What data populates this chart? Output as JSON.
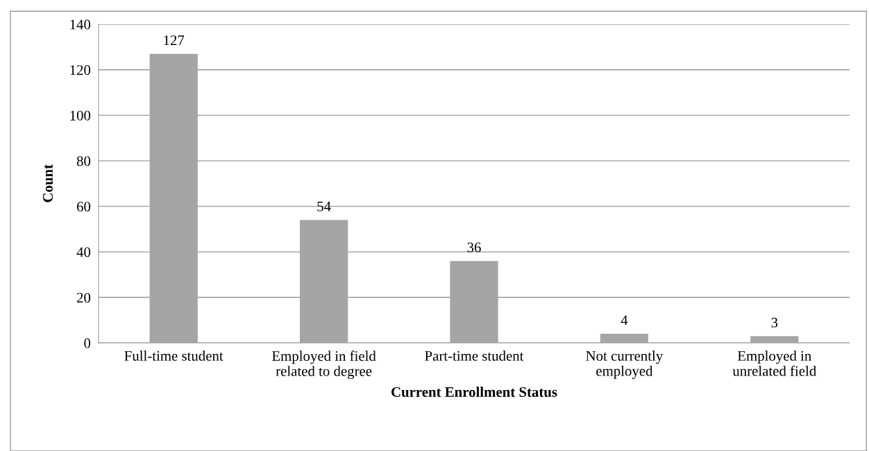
{
  "chart_data": {
    "type": "bar",
    "xlabel": "Current Enrollment Status",
    "ylabel": "Count",
    "categories": [
      "Full-time student",
      "Employed in field\nrelated to degree",
      "Part-time student",
      "Not currently\nemployed",
      "Employed in\nunrelated field"
    ],
    "values": [
      127,
      54,
      36,
      4,
      3
    ],
    "color": "#a5a5a5",
    "ylim": [
      0,
      140
    ],
    "yticks": [
      0,
      20,
      40,
      60,
      80,
      100,
      120,
      140
    ],
    "grid": "y",
    "data_labels": true
  }
}
